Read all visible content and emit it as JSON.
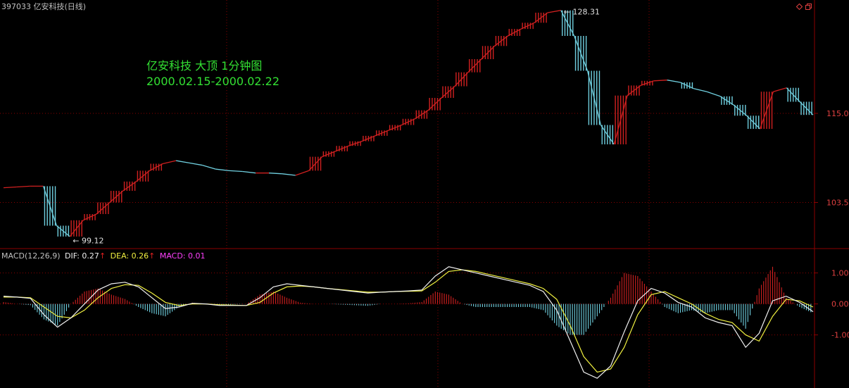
{
  "window": {
    "title": "397033 亿安科技(日线)"
  },
  "annotation": {
    "line1": "亿安科技 大顶 1分钟图",
    "line2": "2000.02.15-2000.02.22"
  },
  "macd_header": {
    "name": "MACD(12,26,9)",
    "dif_label": "DIF: 0.27",
    "dea_label": "DEA: 0.26",
    "macd_label": "MACD: 0.01",
    "up_arrow": "↑"
  },
  "colors": {
    "background": "#000000",
    "grid": "#8b0000",
    "up_bar": "#d02020",
    "down_bar": "#70d0e0",
    "dif_line": "#f0f0f0",
    "dea_line": "#f0f040",
    "macd_label": "#ff40ff",
    "annotation": "#33e033"
  },
  "chart_data": [
    {
      "type": "line",
      "panel": "price",
      "y_axis_ticks": [
        115.0,
        103.5
      ],
      "y_tick_labels": [
        "115.0",
        "103.5"
      ],
      "ylim": [
        98.0,
        128.0
      ],
      "annotations": [
        {
          "text": "128.31",
          "value": 128.31,
          "kind": "high"
        },
        {
          "text": "99.12",
          "value": 99.12,
          "kind": "low"
        }
      ],
      "series": [
        {
          "values": [
            105.4,
            105.5,
            105.6,
            105.6,
            100.5,
            99.1,
            101.2,
            102.0,
            103.5,
            105.0,
            106.2,
            107.6,
            108.5,
            108.9,
            108.6,
            108.3,
            107.8,
            107.6,
            107.5,
            107.3,
            107.3,
            107.2,
            107.0,
            107.6,
            109.4,
            110.1,
            110.8,
            111.4,
            112.1,
            112.8,
            113.5,
            114.3,
            115.4,
            117.0,
            118.5,
            120.3,
            122.0,
            123.7,
            125.0,
            125.9,
            126.7,
            128.0,
            128.3,
            125.0,
            120.5,
            113.5,
            111.0,
            117.3,
            118.6,
            119.2,
            119.3,
            119.0,
            118.2,
            117.8,
            117.2,
            116.1,
            114.7,
            113.0,
            117.8,
            118.3,
            116.5,
            114.8
          ]
        }
      ]
    },
    {
      "type": "line",
      "panel": "macd",
      "y_axis_ticks": [
        1.0,
        0.0,
        -1.0
      ],
      "y_tick_labels": [
        "1.00",
        "0.00",
        "-1.00"
      ],
      "ylim": [
        -2.6,
        1.4
      ],
      "series": [
        {
          "name": "DIF",
          "values": [
            0.25,
            0.22,
            0.18,
            -0.35,
            -0.75,
            -0.45,
            0.0,
            0.45,
            0.65,
            0.7,
            0.55,
            0.2,
            -0.15,
            -0.1,
            0.02,
            0.0,
            -0.05,
            -0.05,
            -0.05,
            0.2,
            0.55,
            0.65,
            0.6,
            0.55,
            0.5,
            0.45,
            0.4,
            0.35,
            0.38,
            0.4,
            0.42,
            0.45,
            0.9,
            1.2,
            1.1,
            1.0,
            0.9,
            0.8,
            0.7,
            0.6,
            0.4,
            -0.2,
            -1.2,
            -2.2,
            -2.4,
            -2.0,
            -0.9,
            0.1,
            0.5,
            0.35,
            0.05,
            -0.1,
            -0.45,
            -0.6,
            -0.7,
            -1.4,
            -0.95,
            0.1,
            0.25,
            0.05,
            -0.25
          ]
        },
        {
          "name": "DEA",
          "values": [
            0.22,
            0.22,
            0.2,
            -0.1,
            -0.4,
            -0.45,
            -0.2,
            0.2,
            0.5,
            0.62,
            0.6,
            0.35,
            0.05,
            -0.05,
            0.0,
            0.0,
            -0.03,
            -0.04,
            -0.05,
            0.05,
            0.35,
            0.55,
            0.58,
            0.55,
            0.5,
            0.46,
            0.42,
            0.38,
            0.38,
            0.4,
            0.41,
            0.42,
            0.7,
            1.05,
            1.1,
            1.05,
            0.95,
            0.85,
            0.75,
            0.65,
            0.5,
            0.15,
            -0.7,
            -1.7,
            -2.2,
            -2.1,
            -1.4,
            -0.35,
            0.3,
            0.4,
            0.2,
            0.0,
            -0.3,
            -0.5,
            -0.6,
            -1.0,
            -1.2,
            -0.4,
            0.15,
            0.1,
            -0.1
          ]
        },
        {
          "name": "MACD",
          "values": [
            0.06,
            0.0,
            -0.04,
            -0.5,
            -0.7,
            0.0,
            0.4,
            0.5,
            0.3,
            0.16,
            -0.1,
            -0.3,
            -0.4,
            -0.1,
            0.04,
            0.0,
            -0.04,
            -0.02,
            0.0,
            0.3,
            0.4,
            0.2,
            0.04,
            0.0,
            0.0,
            -0.02,
            -0.04,
            -0.06,
            0.0,
            0.0,
            0.02,
            0.06,
            0.4,
            0.3,
            0.0,
            -0.1,
            -0.1,
            -0.1,
            -0.1,
            -0.1,
            -0.2,
            -0.7,
            -1.0,
            -1.0,
            -0.4,
            0.2,
            1.0,
            0.9,
            0.4,
            -0.1,
            -0.3,
            -0.2,
            -0.3,
            -0.2,
            -0.2,
            -0.8,
            0.5,
            1.2,
            0.2,
            -0.1,
            -0.3
          ]
        }
      ]
    }
  ]
}
